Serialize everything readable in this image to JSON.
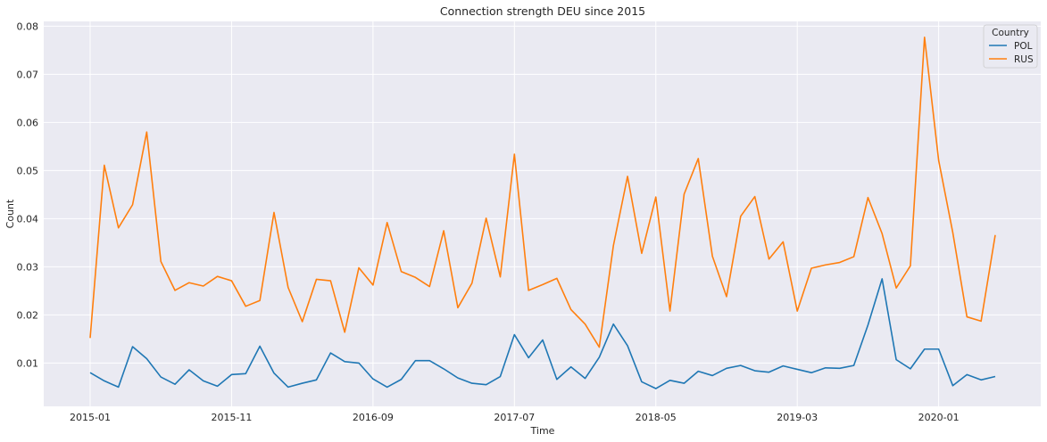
{
  "chart_data": {
    "type": "line",
    "title": "Connection strength DEU since 2015",
    "xlabel": "Time",
    "ylabel": "Count",
    "x_tick_labels": [
      "2015-01",
      "2015-11",
      "2016-09",
      "2017-07",
      "2018-05",
      "2019-03",
      "2020-01"
    ],
    "y_ticks": [
      0.01,
      0.02,
      0.03,
      0.04,
      0.05,
      0.06,
      0.07,
      0.08
    ],
    "y_tick_labels": [
      "0.01",
      "0.02",
      "0.03",
      "0.04",
      "0.05",
      "0.06",
      "0.07",
      "0.08"
    ],
    "ylim": [
      0.001,
      0.081
    ],
    "x_start": "2015-01",
    "legend": {
      "title": "Country",
      "placement": "top-right"
    },
    "grid": true,
    "background": "#eaeaf2",
    "x": [
      "2015-01",
      "2015-02",
      "2015-03",
      "2015-04",
      "2015-05",
      "2015-06",
      "2015-07",
      "2015-08",
      "2015-09",
      "2015-10",
      "2015-11",
      "2015-12",
      "2016-01",
      "2016-02",
      "2016-03",
      "2016-04",
      "2016-05",
      "2016-06",
      "2016-07",
      "2016-08",
      "2016-09",
      "2016-10",
      "2016-11",
      "2016-12",
      "2017-01",
      "2017-02",
      "2017-03",
      "2017-04",
      "2017-05",
      "2017-06",
      "2017-07",
      "2017-08",
      "2017-09",
      "2017-10",
      "2017-11",
      "2017-12",
      "2018-01",
      "2018-02",
      "2018-03",
      "2018-04",
      "2018-05",
      "2018-06",
      "2018-07",
      "2018-08",
      "2018-09",
      "2018-10",
      "2018-11",
      "2018-12",
      "2019-01",
      "2019-02",
      "2019-03",
      "2019-04",
      "2019-05",
      "2019-06",
      "2019-07",
      "2019-08",
      "2019-09",
      "2019-10",
      "2019-11",
      "2019-12",
      "2020-01",
      "2020-02",
      "2020-03",
      "2020-04",
      "2020-05"
    ],
    "series": [
      {
        "name": "POL",
        "color": "#1f77b4",
        "values": [
          0.008,
          0.0063,
          0.005,
          0.0134,
          0.0109,
          0.0071,
          0.0056,
          0.0086,
          0.0063,
          0.0052,
          0.0076,
          0.0078,
          0.0135,
          0.0079,
          0.005,
          0.0058,
          0.0065,
          0.0121,
          0.0103,
          0.01,
          0.0067,
          0.005,
          0.0066,
          0.0105,
          0.0105,
          0.0088,
          0.0069,
          0.0058,
          0.0055,
          0.0072,
          0.0159,
          0.0111,
          0.0148,
          0.0066,
          0.0092,
          0.0068,
          0.0112,
          0.0181,
          0.0136,
          0.0061,
          0.0047,
          0.0064,
          0.0058,
          0.0083,
          0.0074,
          0.0089,
          0.0095,
          0.0084,
          0.0081,
          0.0094,
          0.0087,
          0.008,
          0.009,
          0.0089,
          0.0095,
          0.0179,
          0.0275,
          0.0107,
          0.0088,
          0.0129,
          0.0129,
          0.0053,
          0.0076,
          0.0065,
          0.0072
        ]
      },
      {
        "name": "RUS",
        "color": "#ff7f0e",
        "values": [
          0.0152,
          0.0511,
          0.0381,
          0.0429,
          0.058,
          0.0311,
          0.0251,
          0.0267,
          0.026,
          0.028,
          0.0271,
          0.0218,
          0.023,
          0.0413,
          0.0257,
          0.0186,
          0.0274,
          0.0271,
          0.0164,
          0.0298,
          0.0262,
          0.0392,
          0.029,
          0.0278,
          0.0259,
          0.0375,
          0.0215,
          0.0266,
          0.0401,
          0.0279,
          0.0534,
          0.0251,
          0.0263,
          0.0276,
          0.0211,
          0.0181,
          0.0133,
          0.0344,
          0.0488,
          0.0328,
          0.0445,
          0.0208,
          0.0451,
          0.0525,
          0.0322,
          0.0238,
          0.0405,
          0.0446,
          0.0316,
          0.0352,
          0.0208,
          0.0297,
          0.0304,
          0.0309,
          0.0321,
          0.0444,
          0.0369,
          0.0256,
          0.0302,
          0.0777,
          0.0521,
          0.0371,
          0.0196,
          0.0187,
          0.0366
        ]
      }
    ]
  }
}
